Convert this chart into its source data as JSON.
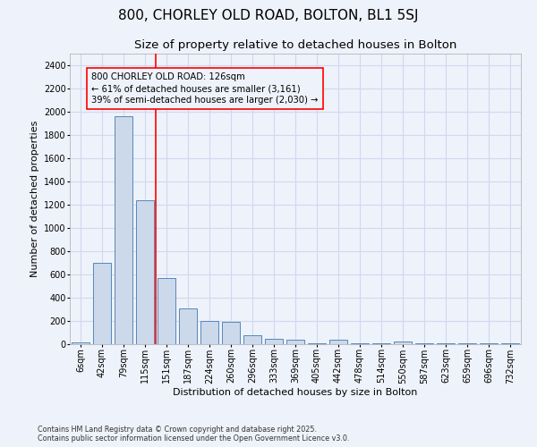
{
  "title1": "800, CHORLEY OLD ROAD, BOLTON, BL1 5SJ",
  "title2": "Size of property relative to detached houses in Bolton",
  "xlabel": "Distribution of detached houses by size in Bolton",
  "ylabel": "Number of detached properties",
  "categories": [
    "6sqm",
    "42sqm",
    "79sqm",
    "115sqm",
    "151sqm",
    "187sqm",
    "224sqm",
    "260sqm",
    "296sqm",
    "333sqm",
    "369sqm",
    "405sqm",
    "442sqm",
    "478sqm",
    "514sqm",
    "550sqm",
    "587sqm",
    "623sqm",
    "659sqm",
    "696sqm",
    "732sqm"
  ],
  "values": [
    15,
    700,
    1960,
    1240,
    570,
    305,
    200,
    195,
    80,
    45,
    35,
    5,
    35,
    5,
    5,
    20,
    5,
    5,
    5,
    5,
    5
  ],
  "bar_color": "#ccd9ea",
  "bar_edge_color": "#5588bb",
  "bar_edge_width": 0.7,
  "red_line_x": 3.5,
  "annotation_line1": "800 CHORLEY OLD ROAD: 126sqm",
  "annotation_line2": "← 61% of detached houses are smaller (3,161)",
  "annotation_line3": "39% of semi-detached houses are larger (2,030) →",
  "ylim": [
    0,
    2500
  ],
  "yticks": [
    0,
    200,
    400,
    600,
    800,
    1000,
    1200,
    1400,
    1600,
    1800,
    2000,
    2200,
    2400
  ],
  "bg_color": "#eef2fa",
  "grid_color": "#d0d8f0",
  "title_fontsize": 11,
  "subtitle_fontsize": 9.5,
  "axis_label_fontsize": 8,
  "tick_fontsize": 7,
  "footer_line1": "Contains HM Land Registry data © Crown copyright and database right 2025.",
  "footer_line2": "Contains public sector information licensed under the Open Government Licence v3.0."
}
